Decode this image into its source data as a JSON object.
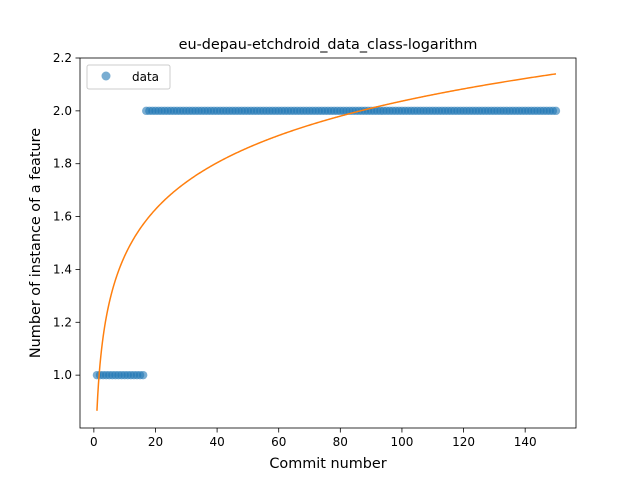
{
  "chart_data": {
    "type": "scatter",
    "title": "eu-depau-etchdroid_data_class-logarithm",
    "xlabel": "Commit number",
    "ylabel": "Number of instance of a feature",
    "xlim": [
      -4.5,
      156.5
    ],
    "ylim": [
      0.8,
      2.2
    ],
    "xticks": [
      0,
      20,
      40,
      60,
      80,
      100,
      120,
      140
    ],
    "yticks": [
      1.0,
      1.2,
      1.4,
      1.6,
      1.8,
      2.0,
      2.2
    ],
    "xtick_labels": [
      "0",
      "20",
      "40",
      "60",
      "80",
      "100",
      "120",
      "140"
    ],
    "ytick_labels": [
      "1.0",
      "1.2",
      "1.4",
      "1.6",
      "1.8",
      "2.0",
      "2.2"
    ],
    "grid": false,
    "legend": {
      "position": "top-left",
      "entries": [
        "data"
      ]
    },
    "series": [
      {
        "name": "data",
        "kind": "scatter",
        "color": "#1f77b4",
        "points": [
          {
            "x_range": [
              1,
              16
            ],
            "y": 1.0
          },
          {
            "x_range": [
              17,
              150
            ],
            "y": 2.0
          }
        ]
      },
      {
        "kind": "line",
        "color": "#ff7f0e",
        "fit": "logarithmic",
        "x_range": [
          1,
          150
        ],
        "y_at_x1": 0.865,
        "y_at_x150": 2.14
      }
    ]
  }
}
